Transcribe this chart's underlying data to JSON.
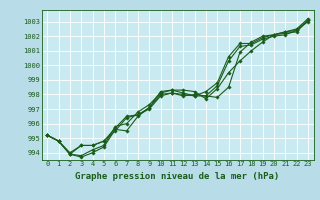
{
  "title": "Graphe pression niveau de la mer (hPa)",
  "xlabel": "Graphe pression niveau de la mer (hPa)",
  "background_color": "#b8dde8",
  "plot_bg_color": "#c8eaf0",
  "grid_color": "#ffffff",
  "line_color": "#1a5c1a",
  "xlim": [
    -0.5,
    23.5
  ],
  "ylim": [
    993.5,
    1003.8
  ],
  "yticks": [
    994,
    995,
    996,
    997,
    998,
    999,
    1000,
    1001,
    1002,
    1003
  ],
  "xticks": [
    0,
    1,
    2,
    3,
    4,
    5,
    6,
    7,
    8,
    9,
    10,
    11,
    12,
    13,
    14,
    15,
    16,
    17,
    18,
    19,
    20,
    21,
    22,
    23
  ],
  "series": [
    [
      995.2,
      994.8,
      993.9,
      993.7,
      994.0,
      994.4,
      995.6,
      995.5,
      996.5,
      997.1,
      998.2,
      998.3,
      998.3,
      998.2,
      997.7,
      998.4,
      999.5,
      1000.3,
      1001.0,
      1001.6,
      1002.1,
      1002.3,
      1002.5,
      1003.2
    ],
    [
      995.2,
      994.8,
      993.9,
      993.8,
      994.2,
      994.5,
      995.8,
      996.0,
      996.8,
      997.3,
      998.1,
      998.3,
      998.1,
      997.9,
      997.9,
      998.6,
      1000.3,
      1001.3,
      1001.4,
      1001.8,
      1002.0,
      1002.1,
      1002.4,
      1003.0
    ],
    [
      995.2,
      994.8,
      994.0,
      994.5,
      994.5,
      994.8,
      995.7,
      996.5,
      996.6,
      997.1,
      998.0,
      998.1,
      998.0,
      997.9,
      998.2,
      998.8,
      1000.6,
      1001.5,
      1001.5,
      1001.9,
      1002.1,
      1002.2,
      1002.3,
      1003.1
    ],
    [
      995.2,
      994.8,
      993.9,
      994.5,
      994.5,
      994.8,
      995.5,
      996.4,
      996.6,
      997.0,
      997.9,
      998.1,
      997.9,
      998.0,
      997.9,
      997.8,
      998.5,
      1000.9,
      1001.6,
      1002.0,
      1002.1,
      1002.3,
      1002.4,
      1003.1
    ]
  ],
  "marker": "D",
  "markersize": 1.8,
  "linewidth": 0.8,
  "tick_fontsize": 5.0,
  "label_fontsize": 6.5,
  "label_fontweight": "bold",
  "figsize": [
    3.2,
    2.0
  ],
  "dpi": 100
}
